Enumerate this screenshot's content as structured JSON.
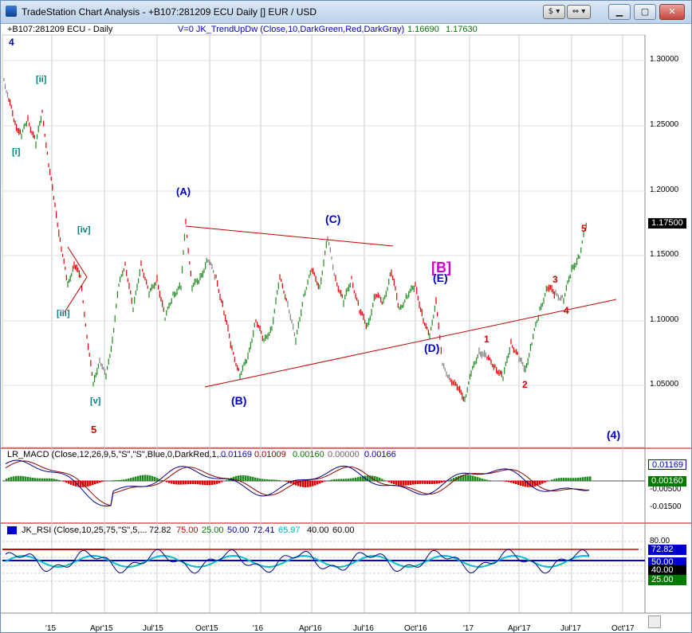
{
  "window": {
    "title": "TradeStation Chart Analysis - +B107:281209 ECU Daily [] EUR / USD",
    "toolbar_buttons": [
      "$ ▾",
      "⇔ ▾"
    ],
    "controls": [
      "minimize",
      "maximize",
      "close"
    ]
  },
  "chart": {
    "symbol_label": "+B107:281209 ECU - Daily",
    "study_label": "V=0  JK_TrendUpDw (Close,10,DarkGreen,Red,DarkGray)",
    "study_value1": "1.16690",
    "study_value2": "1.17630",
    "last_price": "1.17500",
    "price_axis": [
      "1.30000",
      "1.25000",
      "1.20000",
      "1.15000",
      "1.10000",
      "1.05000"
    ],
    "wave_labels": [
      {
        "text": "4",
        "color": "#0000c8"
      },
      {
        "text": "[ii]",
        "color": "#008080"
      },
      {
        "text": "[i]",
        "color": "#008080"
      },
      {
        "text": "[iv]",
        "color": "#008080"
      },
      {
        "text": "[iii]",
        "color": "#008080"
      },
      {
        "text": "[v]",
        "color": "#008080"
      },
      {
        "text": "5",
        "color": "#d00000"
      },
      {
        "text": "(A)",
        "color": "#0000c8"
      },
      {
        "text": "(B)",
        "color": "#0000c8"
      },
      {
        "text": "(C)",
        "color": "#0000c8"
      },
      {
        "text": "[B]",
        "color": "#cc00cc"
      },
      {
        "text": "(E)",
        "color": "#0000c8"
      },
      {
        "text": "(D)",
        "color": "#0000c8"
      },
      {
        "text": "1",
        "color": "#d00000"
      },
      {
        "text": "2",
        "color": "#d00000"
      },
      {
        "text": "3",
        "color": "#d00000"
      },
      {
        "text": "4",
        "color": "#d00000"
      },
      {
        "text": "5",
        "color": "#d00000"
      },
      {
        "text": "(4)",
        "color": "#0000c8"
      }
    ]
  },
  "macd": {
    "label": "LR_MACD (Close,12,26,9,5,\"S\",\"S\",Blue,0,DarkRed,1,...",
    "values": [
      "0.01169",
      "0.01009",
      "0.00160",
      "0.00000",
      "0.00166"
    ],
    "axis": [
      "-0.00500",
      "-0.01500"
    ],
    "box_values": [
      "0.01169",
      "0.00160"
    ]
  },
  "rsi": {
    "label": "JK_RSI (Close,10,25,75,\"S\",5,...",
    "values": [
      "72.82",
      "75.00",
      "25.00",
      "50.00",
      "72.41",
      "65.97",
      "40.00",
      "60.00"
    ],
    "axis_top": "80.00",
    "box_values": [
      "72.82",
      "50.00",
      "40.00",
      "25.00"
    ]
  },
  "time_axis": [
    "'15",
    "Apr'15",
    "Jul'15",
    "Oct'15",
    "'16",
    "Apr'16",
    "Jul'16",
    "Oct'16",
    "'17",
    "Apr'17",
    "Jul'17",
    "Oct'17"
  ],
  "colors": {
    "bull": "#1e8a1e",
    "bear": "#e00000",
    "neutral": "#808080",
    "trendline": "#c00000",
    "macd_line": "#00008b",
    "signal_line": "#8b0000",
    "rsi_line": "#000080",
    "rsi_avg": "#00c0d0"
  }
}
